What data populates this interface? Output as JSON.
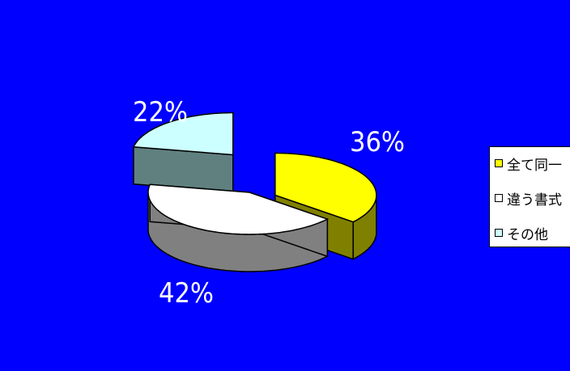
{
  "chart_data": {
    "type": "pie",
    "title": "",
    "style": "3d-exploded",
    "slices": [
      {
        "key": "same",
        "label": "全て同一",
        "value": 36,
        "value_label": "36%",
        "color": "#ffff00",
        "side_color": "#808000"
      },
      {
        "key": "diff",
        "label": "違う書式",
        "value": 42,
        "value_label": "42%",
        "color": "#ffffff",
        "side_color": "#808080"
      },
      {
        "key": "other",
        "label": "その他",
        "value": 22,
        "value_label": "22%",
        "color": "#ccffff",
        "side_color": "#608080"
      }
    ],
    "legend_position": "right",
    "background_color": "#0000ff"
  }
}
